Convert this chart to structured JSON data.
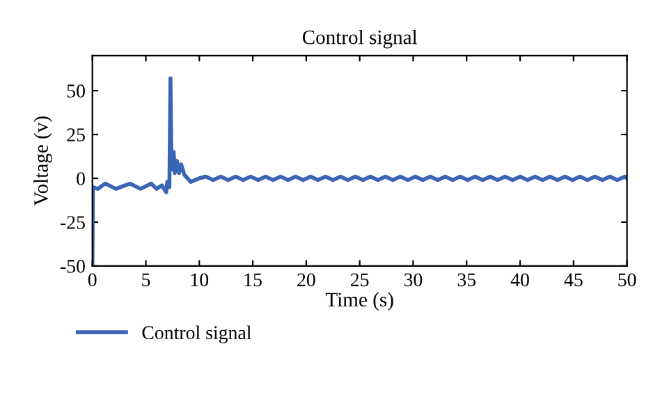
{
  "chart_data": {
    "type": "line",
    "title": "Control signal",
    "xlabel": "Time (s)",
    "ylabel": "Voltage (v)",
    "xlim": [
      0,
      50
    ],
    "ylim": [
      -50,
      70
    ],
    "xticks": [
      0,
      5,
      10,
      15,
      20,
      25,
      30,
      35,
      40,
      45,
      50
    ],
    "yticks": [
      -50,
      -25,
      0,
      25,
      50
    ],
    "grid": false,
    "legend": "bottom left",
    "marker": "none",
    "line_style": "solid",
    "series": [
      {
        "name": "Control signal",
        "color": "#3a64b4",
        "x": [
          0,
          0.05,
          0.5,
          1.2,
          2.2,
          3.5,
          4.5,
          5.5,
          6.0,
          6.5,
          6.9,
          7.0,
          7.2,
          7.3,
          7.4,
          7.6,
          7.7,
          7.9,
          8.1,
          8.3,
          8.6,
          9.2,
          10.0,
          10.6,
          11.3,
          12.0,
          12.7,
          13.4,
          14.1,
          14.8,
          15.5,
          16.2,
          16.9,
          17.6,
          18.3,
          19.0,
          19.7,
          20.4,
          21.1,
          21.8,
          22.5,
          23.2,
          23.9,
          24.6,
          25.3,
          26.0,
          26.7,
          27.4,
          28.1,
          28.8,
          29.5,
          30.2,
          30.9,
          31.6,
          32.3,
          33.0,
          33.7,
          34.4,
          35.1,
          35.8,
          36.5,
          37.2,
          37.9,
          38.6,
          39.3,
          40.0,
          40.7,
          41.4,
          42.1,
          42.8,
          43.5,
          44.2,
          44.9,
          45.6,
          46.3,
          47.0,
          47.7,
          48.4,
          49.1,
          49.8,
          50
        ],
        "values": [
          -50,
          -5,
          -6,
          -3,
          -6,
          -3,
          -6,
          -3,
          -6,
          -4,
          -8,
          -2,
          -5,
          57,
          5,
          15,
          3,
          10,
          3,
          8,
          2,
          -2,
          0,
          1,
          -1,
          1,
          -1,
          1,
          -1,
          1,
          -1,
          1,
          -1,
          1,
          -1,
          1,
          -1,
          1,
          -1,
          1,
          -1,
          1,
          -1,
          1,
          -1,
          1,
          -1,
          1,
          -1,
          1,
          -1,
          1,
          -1,
          1,
          -1,
          1,
          -1,
          1,
          -1,
          1,
          -1,
          1,
          -1,
          1,
          -1,
          1,
          -1,
          1,
          -1,
          1,
          -1,
          1,
          -1,
          1,
          -1,
          1,
          -1,
          1,
          -1,
          1,
          0
        ]
      }
    ]
  }
}
